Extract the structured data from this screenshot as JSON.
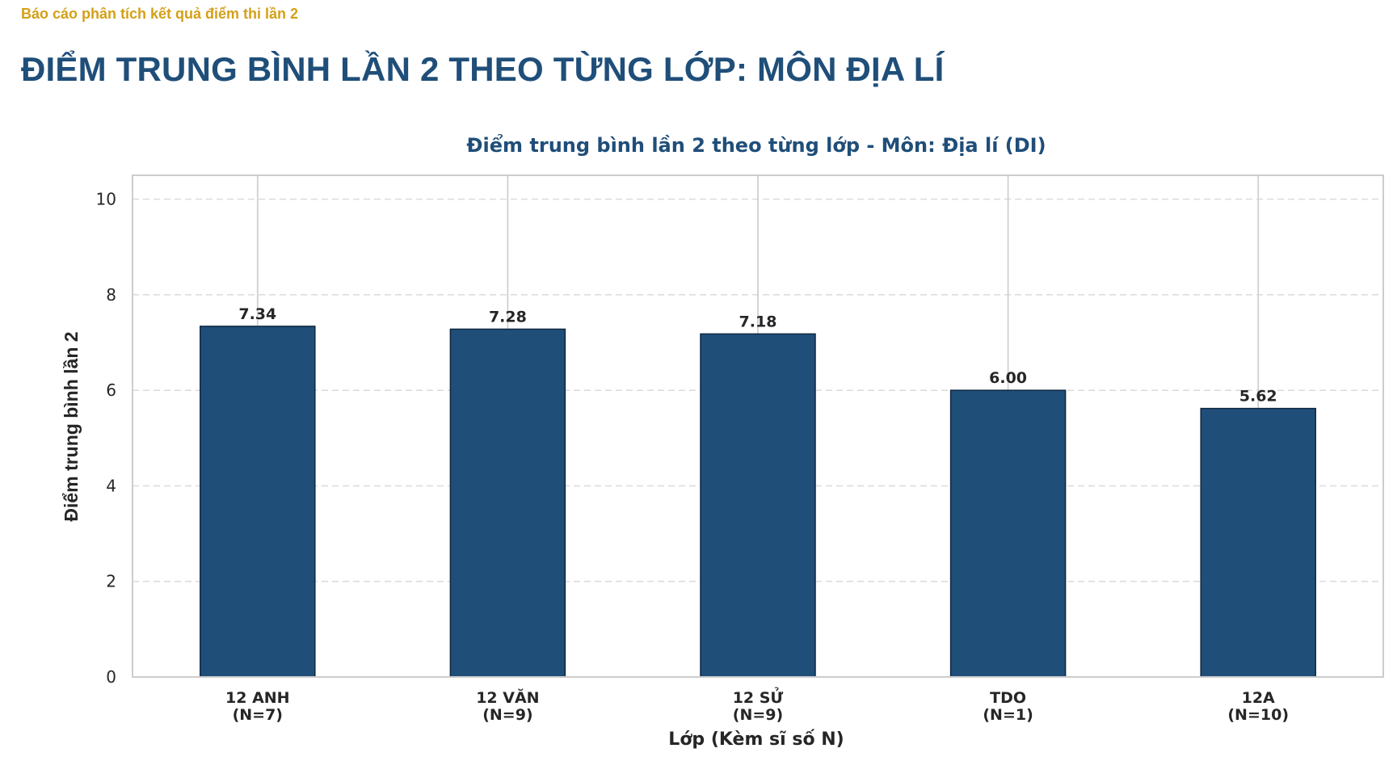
{
  "header": {
    "kicker": "Báo cáo phân tích kết quả điểm thi lần 2",
    "title": "ĐIỂM TRUNG BÌNH LẦN 2 THEO TỪNG LỚP: MÔN ĐỊA LÍ"
  },
  "chart_data": {
    "type": "bar",
    "title": "Điểm trung bình lần 2 theo từng lớp - Môn: Địa lí (DI)",
    "xlabel": "Lớp (Kèm sĩ số N)",
    "ylabel": "Điểm trung bình lần 2",
    "categories": [
      "12 ANH\n(N=7)",
      "12 VĂN\n(N=9)",
      "12 SỬ\n(N=9)",
      "TDO\n(N=1)",
      "12A\n(N=10)"
    ],
    "values": [
      7.34,
      7.28,
      7.18,
      6.0,
      5.62
    ],
    "value_labels": [
      "7.34",
      "7.28",
      "7.18",
      "6.00",
      "5.62"
    ],
    "ylim": [
      0,
      10.5
    ],
    "yticks": [
      0,
      2,
      4,
      6,
      8,
      10
    ],
    "grid": true,
    "colors": {
      "bar": "#1f4e79",
      "bar_edge": "#0f2740",
      "title": "#1f4e79",
      "kicker": "#d4a017",
      "grid": "#dddddd"
    }
  }
}
